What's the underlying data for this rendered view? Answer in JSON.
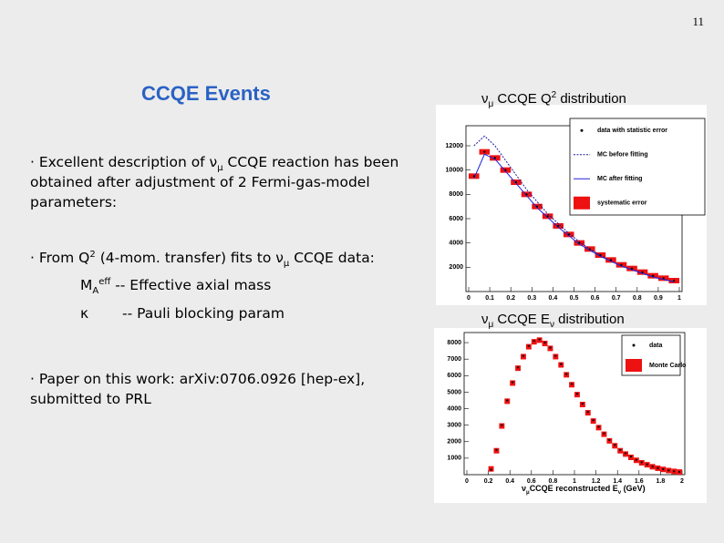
{
  "page_number": "11",
  "title": "CCQE Events",
  "bullets": [
    [
      "· Excellent description of ν",
      "μ",
      " CCQE reaction has been obtained after adjustment of 2 Fermi-gas-model parameters:"
    ],
    [
      "· From Q",
      "2",
      " (4-mom. transfer) fits to ν",
      "μ",
      " CCQE data:"
    ],
    [
      "· Paper on this work: arXiv:0706.0926 [hep-ex], submitted to PRL"
    ]
  ],
  "parameters": [
    [
      "M",
      "A",
      "eff",
      " -- Effective axial mass"
    ],
    [
      "κ",
      "-- Pauli blocking param"
    ]
  ],
  "plots": [
    {
      "type": "histogram",
      "title": [
        "ν",
        "μ",
        " CCQE Q",
        "2",
        " distribution"
      ],
      "xlim": [
        0,
        1
      ],
      "ylim": [
        0,
        13500
      ],
      "xticks": [
        0,
        0.1,
        0.2,
        0.3,
        0.4,
        0.5,
        0.6,
        0.7,
        0.8,
        0.9,
        1
      ],
      "yticks": [
        2000,
        4000,
        6000,
        8000,
        10000,
        12000
      ],
      "bins": [
        0,
        0.05,
        0.1,
        0.15,
        0.2,
        0.25,
        0.3,
        0.35,
        0.4,
        0.45,
        0.5,
        0.55,
        0.6,
        0.65,
        0.7,
        0.75,
        0.8,
        0.85,
        0.9,
        0.95,
        1
      ],
      "series": [
        {
          "name": "data with statistic error",
          "style": "point",
          "color": "#000000",
          "values": [
            9500,
            11500,
            11000,
            10000,
            9000,
            8000,
            7000,
            6200,
            5400,
            4700,
            4000,
            3500,
            3000,
            2600,
            2200,
            1900,
            1600,
            1300,
            1100,
            900
          ]
        },
        {
          "name": "MC before fitting",
          "style": "dashed",
          "color": "#1a1aa0",
          "values": [
            12000,
            12800,
            12000,
            10800,
            9600,
            8400,
            7400,
            6400,
            5600,
            4800,
            4100,
            3500,
            3000,
            2500,
            2100,
            1800,
            1500,
            1200,
            1000,
            800
          ]
        },
        {
          "name": "MC after fitting",
          "style": "solid",
          "color": "#2222dd",
          "values": [
            9300,
            11300,
            10900,
            9900,
            8900,
            7900,
            6900,
            6100,
            5300,
            4600,
            3900,
            3400,
            2900,
            2500,
            2100,
            1800,
            1500,
            1200,
            1000,
            800
          ]
        },
        {
          "name": "systematic error",
          "style": "box",
          "color": "#ee1111",
          "values": [
            9500,
            11500,
            11000,
            10000,
            9000,
            8000,
            7000,
            6200,
            5400,
            4700,
            4000,
            3500,
            3000,
            2600,
            2200,
            1900,
            1600,
            1300,
            1100,
            900
          ]
        }
      ]
    },
    {
      "type": "histogram",
      "title": [
        "ν",
        "μ",
        " CCQE E",
        "ν",
        " distribution"
      ],
      "xlabel": [
        "ν",
        "μ",
        "CCQE reconstructed E",
        "ν",
        " (GeV)"
      ],
      "xlim": [
        0,
        2
      ],
      "ylim": [
        0,
        8500
      ],
      "xticks": [
        0,
        0.2,
        0.4,
        0.6,
        0.8,
        1,
        1.2,
        1.4,
        1.6,
        1.8,
        2
      ],
      "yticks": [
        1000,
        2000,
        3000,
        4000,
        5000,
        6000,
        7000,
        8000
      ],
      "bins": [
        0.2,
        0.25,
        0.3,
        0.35,
        0.4,
        0.45,
        0.5,
        0.55,
        0.6,
        0.65,
        0.7,
        0.75,
        0.8,
        0.85,
        0.9,
        0.95,
        1,
        1.05,
        1.1,
        1.15,
        1.2,
        1.25,
        1.3,
        1.35,
        1.4,
        1.45,
        1.5,
        1.55,
        1.6,
        1.65,
        1.7,
        1.75,
        1.8,
        1.85,
        1.9,
        1.95,
        2
      ],
      "series": [
        {
          "name": "data",
          "style": "point",
          "color": "#000000",
          "values": [
            300,
            1500,
            3000,
            4500,
            5600,
            6500,
            7200,
            7800,
            8100,
            8200,
            8000,
            7700,
            7200,
            6700,
            6100,
            5500,
            4900,
            4300,
            3800,
            3300,
            2900,
            2500,
            2100,
            1800,
            1500,
            1300,
            1100,
            900,
            750,
            620,
            500,
            400,
            330,
            260,
            210,
            170
          ]
        },
        {
          "name": "Monte Carlo",
          "style": "box",
          "color": "#ee1111",
          "values": [
            350,
            1450,
            2950,
            4450,
            5550,
            6450,
            7150,
            7750,
            8050,
            8150,
            7950,
            7650,
            7150,
            6650,
            6050,
            5450,
            4850,
            4250,
            3750,
            3250,
            2850,
            2450,
            2050,
            1750,
            1450,
            1250,
            1050,
            870,
            720,
            600,
            480,
            390,
            320,
            250,
            200,
            160
          ]
        }
      ]
    }
  ]
}
